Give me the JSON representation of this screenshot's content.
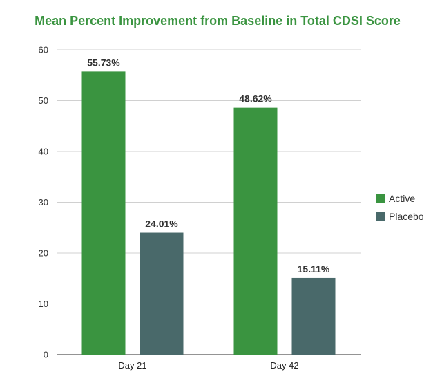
{
  "chart_data": {
    "type": "bar",
    "title": "Mean Percent Improvement from Baseline in Total CDSI Score",
    "xlabel": "",
    "ylabel": "",
    "categories": [
      "Day 21",
      "Day 42"
    ],
    "series": [
      {
        "name": "Active",
        "color": "#3a9440",
        "values": [
          55.73,
          48.62
        ],
        "labels": [
          "55.73%",
          "48.62%"
        ]
      },
      {
        "name": "Placebo",
        "color": "#49696a",
        "values": [
          24.01,
          15.11
        ],
        "labels": [
          "24.01%",
          "15.11%"
        ]
      }
    ],
    "ylim": [
      0,
      60
    ],
    "yticks": [
      0,
      10,
      20,
      30,
      40,
      50,
      60
    ],
    "grid": true,
    "legend": "right",
    "title_color": "#3a9440"
  }
}
